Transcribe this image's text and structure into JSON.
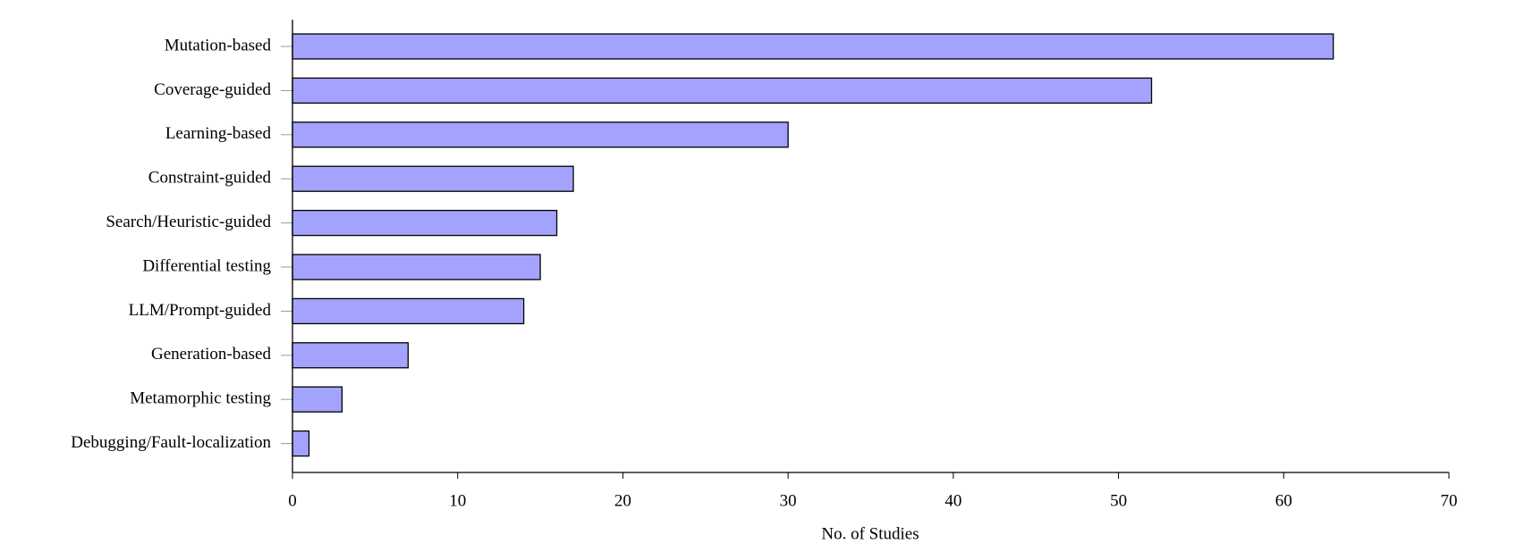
{
  "chart_data": {
    "type": "bar",
    "orientation": "horizontal",
    "xlabel": "No. of Studies",
    "categories": [
      "Mutation-based",
      "Coverage-guided",
      "Learning-based",
      "Constraint-guided",
      "Search/Heuristic-guided",
      "Differential testing",
      "LLM/Prompt-guided",
      "Generation-based",
      "Metamorphic testing",
      "Debugging/Fault-localization"
    ],
    "values": [
      63,
      52,
      30,
      17,
      16,
      15,
      14,
      7,
      3,
      1
    ],
    "color": "#a3a3fd",
    "xlim": [
      0,
      70
    ],
    "xticks": [
      0,
      10,
      20,
      30,
      40,
      50,
      60,
      70
    ],
    "grid": false
  }
}
